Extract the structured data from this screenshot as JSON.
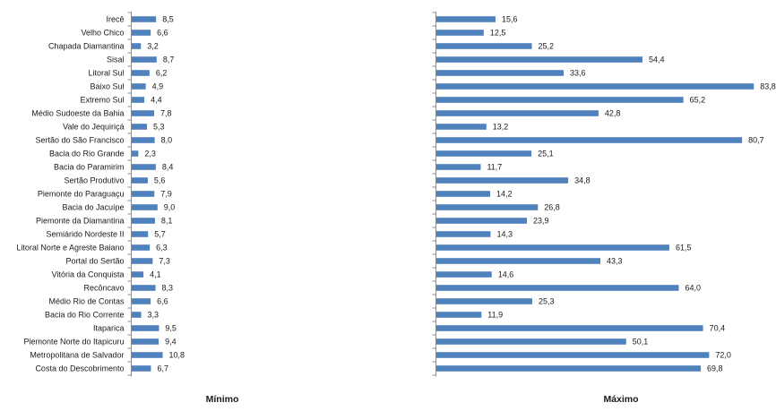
{
  "chart_data": {
    "type": "bar",
    "orientation": "horizontal",
    "bar_color": "#4f81bd",
    "grid": false,
    "categories": [
      "Irecê",
      "Velho Chico",
      "Chapada Diamantina",
      "Sisal",
      "Litoral Sul",
      "Baixo Sul",
      "Extremo Sul",
      "Médio Sudoeste da Bahia",
      "Vale do Jequiriçá",
      "Sertão do São Francisco",
      "Bacia do Rio Grande",
      "Bacia do Paramirim",
      "Sertão Produtivo",
      "Piemonte do Paraguaçu",
      "Bacia do Jacuípe",
      "Piemonte da Diamantina",
      "Semiárido Nordeste II",
      "Litoral Norte e Agreste Baiano",
      "Portal do Sertão",
      "Vitória da Conquista",
      "Recôncavo",
      "Médio Rio de Contas",
      "Bacia do Rio Corrente",
      "Itaparica",
      "Piemonte Norte do Itapicuru",
      "Metropolitana de Salvador",
      "Costa do Descobrimento"
    ],
    "series": [
      {
        "name": "Mínimo",
        "values": [
          8.5,
          6.6,
          3.2,
          8.7,
          6.2,
          4.9,
          4.4,
          7.8,
          5.3,
          8.0,
          2.3,
          8.4,
          5.6,
          7.9,
          9.0,
          8.1,
          5.7,
          6.3,
          7.3,
          4.1,
          8.3,
          6.6,
          3.3,
          9.5,
          9.4,
          10.8,
          6.7
        ],
        "labels": [
          "8,5",
          "6,6",
          "3,2",
          "8,7",
          "6,2",
          "4,9",
          "4,4",
          "7,8",
          "5,3",
          "8,0",
          "2,3",
          "8,4",
          "5,6",
          "7,9",
          "9,0",
          "8,1",
          "5,7",
          "6,3",
          "7,3",
          "4,1",
          "8,3",
          "6,6",
          "3,3",
          "9,5",
          "9,4",
          "10,8",
          "6,7"
        ]
      },
      {
        "name": "Máximo",
        "values": [
          15.6,
          12.5,
          25.2,
          54.4,
          33.6,
          83.8,
          65.2,
          42.8,
          13.2,
          80.7,
          25.1,
          11.7,
          34.8,
          14.2,
          26.8,
          23.9,
          14.3,
          61.5,
          43.3,
          14.6,
          64.0,
          25.3,
          11.9,
          70.4,
          50.1,
          72.0,
          69.8
        ],
        "labels": [
          "15,6",
          "12,5",
          "25,2",
          "54,4",
          "33,6",
          "83,8",
          "65,2",
          "42,8",
          "13,2",
          "80,7",
          "25,1",
          "11,7",
          "34,8",
          "14,2",
          "26,8",
          "23,9",
          "14,3",
          "61,5",
          "43,3",
          "14,6",
          "64,0",
          "25,3",
          "11,9",
          "70,4",
          "50,1",
          "72,0",
          "69,8"
        ]
      }
    ]
  }
}
